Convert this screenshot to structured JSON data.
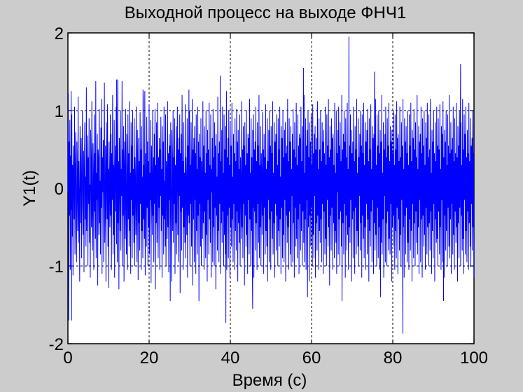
{
  "chart_data": {
    "type": "line",
    "title": "Выходной процесс на выходе ФНЧ1",
    "xlabel": "Время (с)",
    "ylabel": "Y1(t)",
    "xlim": [
      0,
      100
    ],
    "ylim": [
      -2,
      2
    ],
    "xticks": [
      "0",
      "20",
      "40",
      "60",
      "80",
      "100"
    ],
    "yticks": [
      "2",
      "1",
      "0",
      "-1",
      "-2"
    ],
    "grid": true,
    "series": [
      {
        "color": "#0000ff",
        "sample_step": 0.1,
        "values": [
          -0.05,
          1.22,
          -1.7,
          0.6,
          -0.35,
          0.88,
          -1.05,
          0.42,
          -0.28,
          0.15,
          0.95,
          -0.62,
          0.3,
          -1.12,
          0.55,
          0.1,
          -0.4,
          1.05,
          -0.85,
          0.2,
          0.72,
          -0.3,
          -0.95,
          0.6,
          0.05,
          -0.55,
          1.18,
          -0.7,
          0.35,
          -0.15,
          -1.2,
          0.8,
          0.25,
          -0.45,
          0.65,
          -0.9,
          0.1,
          1.0,
          -0.25,
          -0.6,
          0.48,
          -1.08,
          0.3,
          0.85,
          -0.4,
          0.15,
          -0.75,
          1.3,
          -0.55,
          0.2,
          0.68,
          -1.0,
          0.4,
          -0.2,
          0.9,
          -0.7,
          0.05,
          -1.15,
          0.75,
          0.3,
          -0.5,
          1.12,
          -0.35,
          -0.8,
          0.58,
          0.12,
          -1.05,
          0.95,
          -0.3,
          0.45,
          -0.65,
          1.38,
          -0.9,
          0.2,
          -0.15,
          0.7,
          -1.25,
          0.5,
          0.35,
          -0.6,
          1.02,
          -0.45,
          0.1,
          -0.85,
          0.78,
          -0.25,
          1.15,
          -1.1,
          0.4,
          -0.05,
          0.62,
          -0.95,
          0.3,
          1.36,
          -0.7,
          -0.2,
          0.55,
          -1.2,
          0.85,
          0.15,
          -0.4,
          1.08,
          -0.75,
          0.25,
          -1.28,
          0.6,
          0.05,
          -0.5,
          0.95,
          -0.35,
          0.7,
          -1.05,
          0.45,
          -0.15,
          1.2,
          -0.85,
          0.3,
          -0.6,
          0.88,
          -1.15,
          0.2,
          0.55,
          -0.3,
          1.05,
          -0.72,
          0.1,
          -0.95,
          1.4,
          -0.45,
          0.35,
          -1.3,
          0.65,
          0.15,
          -0.55,
          1.0,
          -0.8,
          0.25,
          -0.1,
          1.38,
          -1.0,
          0.5,
          -0.35,
          0.8,
          -1.2,
          0.3,
          0.6,
          -0.65,
          1.02,
          -0.25,
          -0.85,
          0.7,
          0.1,
          -1.05,
          0.95,
          -0.4,
          0.45,
          -0.75,
          1.12,
          -0.55,
          0.2,
          -1.1,
          0.85,
          -0.15,
          0.55,
          -0.9,
          1.0,
          -0.35,
          0.25,
          -0.7,
          0.9,
          -1.0,
          0.4,
          0.05,
          -0.6,
          1.05,
          -0.3,
          -0.95,
          0.75,
          0.2,
          -1.18,
          0.65,
          -0.45,
          0.35,
          -0.8,
          0.98,
          -0.2,
          0.5,
          -1.05,
          0.8,
          -0.55,
          0.15,
          -0.9,
          1.15,
          -0.4,
          0.3,
          -0.65,
          1.25,
          -1.12,
          0.45,
          0.1,
          -0.75,
          0.92,
          -0.25,
          0.6,
          -1.0,
          0.35,
          -0.5,
          1.08,
          -0.85,
          0.2,
          -0.15,
          0.88,
          -1.22,
          0.55,
          0.05,
          -0.6,
          1.0,
          -0.35,
          0.4,
          -0.95,
          0.7,
          -0.2,
          1.02,
          -1.3,
          0.3,
          -0.45,
          0.85,
          -0.7,
          0.15,
          1.1,
          -0.9,
          0.4,
          -0.25,
          0.65,
          -1.05,
          0.5,
          -0.1,
          0.92,
          -0.55,
          0.25,
          -1.15,
          0.8,
          -0.35,
          0.6,
          -0.85,
          1.05,
          -0.4,
          0.1,
          -0.75,
          0.95,
          -1.0,
          0.35,
          0.2,
          -0.65,
          1.12,
          -0.5,
          0.45,
          -1.08,
          0.7,
          -0.15,
          0.55,
          -0.9,
          0.85,
          -0.3,
          -1.2,
          0.75,
          0.25,
          -0.55,
          1.0,
          -0.7,
          0.4,
          -0.2,
          0.9,
          -1.1,
          0.3,
          -0.45,
          0.8,
          -0.85,
          0.15,
          1.05,
          -0.6,
          0.5,
          -0.95,
          0.65,
          -0.1,
          0.95,
          -1.35,
          0.45,
          -0.3,
          0.7,
          -0.8,
          1.2,
          -0.25,
          0.35,
          -1.05,
          0.85,
          -0.5,
          0.2,
          -0.7,
          1.08,
          -0.9,
          0.4,
          0.05,
          -0.6,
          0.9,
          -1.15,
          0.55,
          -0.35,
          0.75,
          -0.45,
          1.0,
          -1.0,
          0.3,
          -0.2,
          0.85,
          -0.75,
          0.15,
          1.15,
          -1.25,
          0.5,
          -0.4,
          0.65,
          -0.95,
          0.8,
          -0.15,
          0.45,
          -1.1,
          0.95,
          -0.55,
          0.25,
          -0.85,
          1.05,
          -0.35,
          0.6,
          -1.45,
          0.7,
          -0.2,
          0.4,
          -0.75,
          0.9,
          -1.0,
          0.35,
          0.1,
          -0.65,
          1.12,
          -0.45,
          0.55,
          -1.05,
          0.8,
          -0.3,
          0.2,
          -0.9,
          1.0,
          -0.6,
          0.45,
          -1.2,
          0.75,
          -0.15,
          0.5,
          -0.85,
          1.1,
          -0.4,
          0.3,
          -0.7,
          0.95,
          -1.15,
          0.25,
          -0.05,
          0.65,
          -0.95,
          1.02,
          -0.5,
          0.4,
          -1.0,
          0.85,
          -0.25,
          0.55,
          -1.3,
          0.7,
          -0.35,
          0.15,
          -0.8,
          1.18,
          -0.55,
          0.45,
          -0.95,
          0.6,
          -0.2,
          0.9,
          -1.1,
          0.35,
          -0.45,
          0.75,
          -0.7,
          1.05,
          -0.3,
          0.2,
          -1.0,
          0.95,
          -0.6,
          0.5,
          -0.85,
          0.8,
          -0.15,
          1.25,
          -1.05,
          0.4,
          -0.35,
          0.65,
          -0.9,
          1.0,
          -0.25,
          0.3,
          -1.15,
          0.85,
          -0.5,
          0.55,
          -0.75,
          1.1,
          -0.4,
          0.15,
          -0.95,
          0.7,
          -0.2,
          0.45,
          -1.05,
          0.9,
          -0.55,
          0.35,
          -0.8,
          1.02,
          -0.3,
          0.6,
          -1.2,
          0.75,
          -0.45,
          0.25,
          -0.7,
          0.95,
          -1.0,
          0.4,
          0.05,
          -0.65,
          1.12,
          -0.5,
          0.5,
          -0.9,
          0.8,
          -0.2,
          0.55,
          -1.25,
          0.85,
          -0.35,
          0.3,
          -0.75,
          1.0,
          -0.6,
          0.45,
          -1.1,
          0.7,
          -0.15,
          0.65,
          -0.85,
          1.15,
          -0.4,
          0.2,
          -1.0,
          0.9,
          -0.55,
          0.4,
          -0.95,
          0.75,
          -0.25,
          0.95,
          -1.15,
          0.5,
          -0.3,
          0.6,
          -0.8,
          1.05,
          -0.45,
          0.35,
          -1.05,
          0.85,
          -0.2,
          0.55,
          -0.7,
          1.2,
          -0.9,
          0.3,
          -0.5,
          0.8,
          -1.0,
          0.45,
          0.1,
          -0.6,
          0.98,
          -0.35,
          0.5,
          -1.1,
          0.7,
          -0.25,
          0.4,
          -0.85,
          1.08,
          -0.55,
          0.25,
          -0.75,
          0.9,
          -1.2,
          0.35,
          -0.15,
          0.75,
          -0.95,
          1.0,
          -0.4,
          0.55,
          -1.05,
          0.8,
          -0.3,
          0.45,
          -0.65,
          1.12,
          -0.85,
          0.2,
          -0.45,
          0.85,
          -1.15,
          0.6,
          -0.2,
          0.7,
          -0.8,
          0.95,
          -0.35,
          0.3,
          -1.0,
          0.9,
          -0.55,
          0.5,
          -0.75,
          1.05,
          -0.4,
          0.15,
          -1.1,
          0.8,
          -0.25,
          0.65,
          -0.9,
          1.0,
          -0.6,
          0.4,
          -0.95,
          0.75,
          -0.15,
          0.85,
          -1.2,
          0.45,
          -0.35,
          0.55,
          -0.7,
          1.15,
          -0.5,
          0.35,
          -1.05,
          0.9,
          -0.3,
          0.6,
          -0.85,
          0.8,
          -1.0,
          0.25,
          -0.1,
          0.7,
          -0.95,
          1.02,
          -0.45,
          0.5,
          -1.15,
          0.85,
          -0.25,
          0.4,
          -0.75,
          1.1,
          -0.65,
          0.3,
          -0.9,
          0.95,
          -0.4,
          0.55,
          -1.1,
          0.7,
          -0.2,
          0.65,
          -0.8,
          1.05,
          -0.55,
          0.35,
          -1.0,
          0.8,
          -0.3,
          0.45,
          -0.7,
          1.2,
          -0.95,
          0.2,
          -0.4,
          0.9,
          -1.05,
          0.55,
          -0.15,
          0.75,
          -0.85,
          1.0,
          -0.5,
          0.4,
          -1.2,
          0.85,
          -0.35,
          0.6,
          -0.75,
          0.95,
          -0.25,
          0.3,
          -1.0,
          1.08,
          -0.6,
          0.45,
          -0.9,
          0.7,
          -0.1,
          0.8,
          -1.15,
          0.5,
          -0.45,
          0.65,
          -0.8,
          1.12,
          -0.35,
          0.25,
          -1.05,
          0.9,
          -0.55,
          0.5,
          -0.7,
          1.0,
          -0.4,
          0.35,
          -0.95,
          0.85,
          -0.2,
          0.6,
          -1.1,
          0.75,
          -0.3,
          0.45,
          -0.85,
          1.05,
          -0.65,
          0.3,
          -1.0,
          0.95,
          -0.15,
          0.55,
          -0.75,
          1.15,
          -0.5,
          0.4,
          -1.25,
          0.8,
          -0.35,
          0.5,
          -0.8,
          0.9,
          -0.25,
          0.65,
          -1.05,
          0.7,
          -0.45,
          0.3,
          -0.9,
          1.1,
          -0.55,
          0.2,
          -0.7,
          1.0,
          -1.1,
          0.45,
          -0.05,
          0.75,
          -0.85,
          1.05,
          -0.4,
          0.55,
          -1.0,
          0.85,
          -0.3,
          0.35,
          -0.75,
          1.2,
          -0.95,
          0.5,
          -0.45,
          0.7,
          -0.85,
          1.0,
          -0.2,
          0.6,
          -1.15,
          0.9,
          -0.35,
          0.4,
          -0.8,
          1.1,
          -0.6,
          0.25,
          -1.05,
          0.85,
          -0.5,
          0.55,
          -0.7,
          0.95,
          -0.15,
          0.75,
          -1.2,
          0.45,
          -0.4,
          0.6,
          -0.9,
          1.05,
          -0.3,
          0.35,
          -1.1,
          0.8,
          -0.25,
          0.5,
          -0.85,
          1.15,
          -0.55,
          0.2,
          -0.75,
          0.9,
          -1.0,
          0.4,
          -0.1,
          0.7,
          -0.8,
          1.0,
          -0.45,
          0.55,
          -1.15,
          0.95,
          -0.35,
          0.45,
          -0.65,
          1.1,
          -0.9,
          0.3,
          -0.5,
          0.85,
          -1.05,
          0.6,
          -0.2,
          0.75,
          -0.85,
          1.02,
          -0.4,
          0.35,
          -1.2,
          0.9,
          -0.55,
          0.5,
          -0.75,
          1.08,
          -0.3,
          0.25,
          -0.95,
          0.8,
          -0.15,
          0.65,
          -1.1,
          0.7,
          -0.45,
          0.4,
          -0.8,
          1.15,
          -0.6,
          0.3,
          -1.0,
          0.95,
          -0.25,
          0.55,
          -0.9,
          1.0,
          -0.5,
          0.45,
          -1.05,
          0.75,
          -0.35,
          0.6,
          -0.7,
          1.2,
          -0.85,
          0.2,
          -0.4,
          0.85,
          -1.15,
          0.5,
          -0.1,
          0.7,
          -0.95,
          1.05,
          -0.45,
          0.4,
          -1.0,
          0.9,
          -0.3,
          0.55,
          -0.8,
          1.1,
          -0.65,
          0.35,
          -0.85,
          0.8,
          -0.2,
          0.6,
          -1.2,
          0.75,
          -0.5,
          0.45,
          -0.75,
          1.0,
          -0.35,
          0.3,
          -1.05,
          0.95,
          -0.55,
          0.5,
          -0.9,
          1.12,
          -0.25,
          0.65,
          -1.1,
          0.7,
          -0.4,
          0.35,
          -0.8,
          1.05,
          -0.6,
          0.4,
          -1.0,
          0.85,
          -0.15,
          0.55,
          -0.75,
          1.15,
          -0.5,
          0.25,
          -1.15,
          0.9,
          -0.35,
          0.6,
          -0.85,
          0.8,
          -0.25,
          0.45,
          -0.95,
          1.0,
          -0.7,
          0.3,
          -1.05,
          0.95,
          -0.4,
          0.55,
          -0.8,
          1.1,
          -0.55,
          0.35,
          -1.2,
          0.75,
          -0.2,
          0.65,
          -0.9,
          1.02,
          -0.45,
          0.5,
          -1.0,
          0.85,
          -0.3,
          0.4,
          -0.7,
          1.2,
          -0.85,
          0.25,
          -0.5,
          0.8,
          -1.1,
          0.6,
          -0.15,
          0.7,
          -0.95,
          1.05,
          -0.4,
          0.45,
          -1.15,
          0.9,
          -0.35,
          0.55,
          -0.75,
          1.0,
          -0.6,
          0.3,
          -1.05,
          0.85,
          -0.25,
          0.65,
          -0.85,
          1.1,
          -0.5,
          0.4,
          -1.0,
          0.95,
          -0.45,
          0.5,
          -0.8,
          1.15,
          -0.3,
          0.2,
          -1.1,
          0.75,
          -0.55,
          0.6,
          -0.9,
          1.0,
          -0.2,
          0.45,
          -1.2,
          0.85,
          -0.4,
          0.35,
          -0.7,
          1.05,
          -0.65,
          0.55,
          -1.0,
          0.9,
          -0.3,
          0.5,
          -0.85,
          1.08,
          -0.5,
          0.25,
          -1.05,
          0.8,
          -0.15,
          0.7,
          -0.95,
          1.12,
          -0.45,
          0.4,
          -1.15,
          0.75,
          -0.35,
          0.6,
          -0.8,
          1.0,
          -0.55,
          0.3,
          -1.0,
          0.95,
          -0.25,
          0.55,
          -0.75,
          1.2,
          -0.9,
          0.45,
          -0.4,
          0.85,
          -1.1,
          0.5,
          -0.2,
          0.65,
          -0.85,
          1.05,
          -0.6,
          0.35,
          -1.05,
          0.9,
          -0.3,
          0.45,
          -0.7,
          1.1,
          -0.5,
          0.4,
          -1.2,
          0.8,
          -0.45,
          0.55,
          -0.9,
          1.0,
          -0.25,
          0.6,
          -1.0,
          0.85,
          -0.35,
          0.3,
          -0.8,
          1.15,
          -0.65,
          0.5,
          -1.1,
          0.95,
          -0.15,
          0.7,
          -0.85,
          1.05,
          -0.55,
          0.4,
          -0.95,
          0.75,
          -0.3,
          0.45,
          -1.05,
          1.1,
          -0.45,
          0.35,
          -0.75,
          0.9,
          -1.0,
          0.55,
          -0.2,
          0.65,
          -0.8,
          1.0,
          -0.5,
          0.45,
          -1.15
        ]
      }
    ],
    "spikes": [
      {
        "x": 0.8,
        "y": 1.25
      },
      {
        "x": 0.9,
        "y": -1.7
      },
      {
        "x": 12.0,
        "y": 1.4
      },
      {
        "x": 18.5,
        "y": 1.27
      },
      {
        "x": 25.2,
        "y": -1.45
      },
      {
        "x": 29.8,
        "y": 1.27
      },
      {
        "x": 37.5,
        "y": 1.45
      },
      {
        "x": 38.9,
        "y": -1.73
      },
      {
        "x": 45.5,
        "y": -1.55
      },
      {
        "x": 58.0,
        "y": 1.55
      },
      {
        "x": 59.0,
        "y": -1.4
      },
      {
        "x": 67.5,
        "y": -1.45
      },
      {
        "x": 69.2,
        "y": 1.95
      },
      {
        "x": 75.5,
        "y": 1.5
      },
      {
        "x": 77.0,
        "y": -1.4
      },
      {
        "x": 82.5,
        "y": -1.87
      },
      {
        "x": 92.5,
        "y": -1.45
      },
      {
        "x": 96.7,
        "y": 1.6
      }
    ]
  }
}
